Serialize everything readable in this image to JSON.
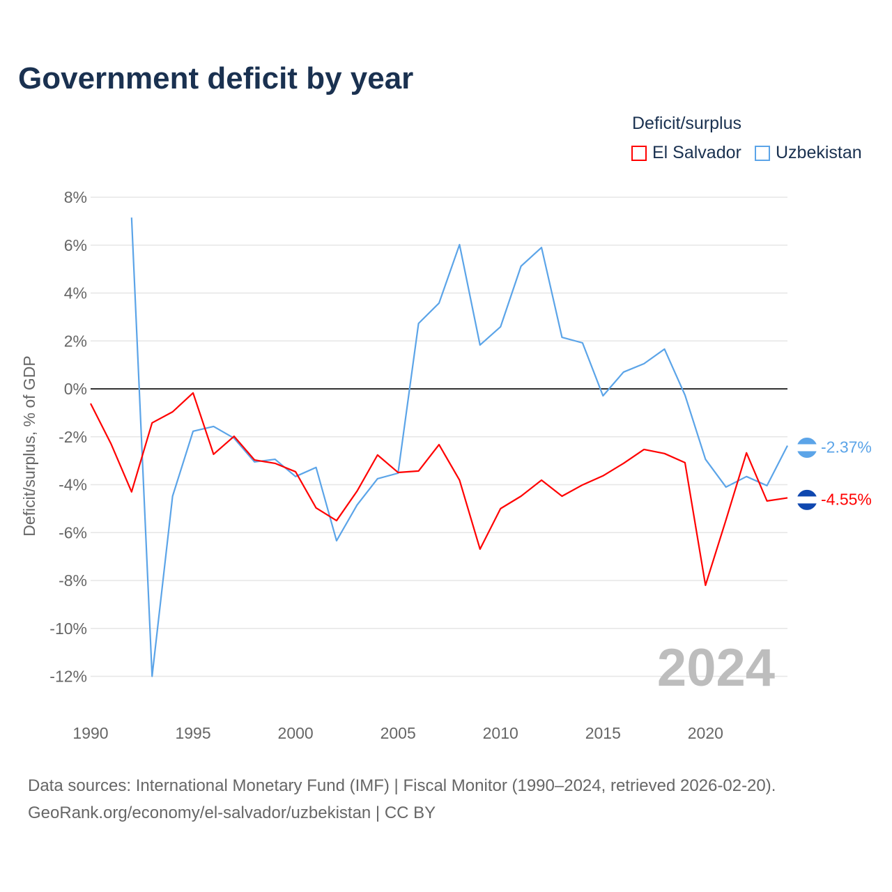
{
  "title": "Government deficit by year",
  "legend": {
    "title": "Deficit/surplus",
    "items": [
      "El Salvador",
      "Uzbekistan"
    ]
  },
  "source_line1": "Data sources: International Monetary Fund (IMF) | Fiscal Monitor (1990–2024, retrieved 2026-02-20).",
  "source_line2": "GeoRank.org/economy/el-salvador/uzbekistan | CC BY",
  "chart_data": {
    "type": "line",
    "title": "Government deficit by year",
    "ylabel": "Deficit/surplus, % of GDP",
    "xlabel": "",
    "ylim": [
      -12,
      8
    ],
    "xlim": [
      1990,
      2024
    ],
    "yticks": [
      "8%",
      "6%",
      "4%",
      "2%",
      "0%",
      "-2%",
      "-4%",
      "-6%",
      "-8%",
      "-10%",
      "-12%"
    ],
    "ytick_values": [
      8,
      6,
      4,
      2,
      0,
      -2,
      -4,
      -6,
      -8,
      -10,
      -12
    ],
    "xticks": [
      "1990",
      "1995",
      "2000",
      "2005",
      "2010",
      "2015",
      "2020"
    ],
    "xtick_values": [
      1990,
      1995,
      2000,
      2005,
      2010,
      2015,
      2020
    ],
    "year_label": "2024",
    "grid": true,
    "legend_placement": "top-right",
    "series": [
      {
        "name": "El Salvador",
        "color": "#ff0000",
        "end_label": "-4.55%",
        "x_start": 1990,
        "values": [
          -0.61,
          -2.3,
          -4.3,
          -1.42,
          -0.96,
          -0.17,
          -2.73,
          -1.98,
          -2.97,
          -3.11,
          -3.46,
          -4.97,
          -5.5,
          -4.27,
          -2.76,
          -3.49,
          -3.43,
          -2.33,
          -3.81,
          -6.69,
          -5.0,
          -4.48,
          -3.81,
          -4.48,
          -4.01,
          -3.63,
          -3.11,
          -2.53,
          -2.7,
          -3.08,
          -8.2,
          -5.47,
          -2.67,
          -4.68,
          -4.55
        ]
      },
      {
        "name": "Uzbekistan",
        "color": "#5ba4e8",
        "end_label": "-2.37%",
        "x_start": 1992,
        "values": [
          7.15,
          -12.0,
          -4.48,
          -1.77,
          -1.57,
          -2.06,
          -3.05,
          -2.94,
          -3.66,
          -3.28,
          -6.34,
          -4.85,
          -3.75,
          -3.52,
          2.73,
          3.58,
          6.02,
          1.83,
          2.59,
          5.12,
          5.9,
          2.15,
          1.92,
          -0.29,
          0.7,
          1.05,
          1.66,
          -0.26,
          -2.94,
          -4.1,
          -3.66,
          -4.04,
          -2.37
        ]
      }
    ]
  }
}
